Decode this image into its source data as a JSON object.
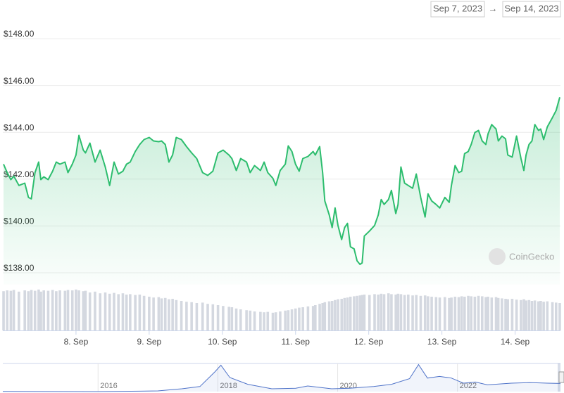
{
  "range": {
    "from": "Sep 7, 2023",
    "separator": "→",
    "to": "Sep 14, 2023"
  },
  "watermark": "CoinGecko",
  "chart_data": {
    "type": "line",
    "color": "#2dbd6e",
    "grid": true,
    "xlim": [
      7.0,
      14.62
    ],
    "ylim": [
      137.5,
      148.5
    ],
    "xticks": [
      {
        "value": 8,
        "label": "8. Sep"
      },
      {
        "value": 9,
        "label": "9. Sep"
      },
      {
        "value": 10,
        "label": "10. Sep"
      },
      {
        "value": 11,
        "label": "11. Sep"
      },
      {
        "value": 12,
        "label": "12. Sep"
      },
      {
        "value": 13,
        "label": "13. Sep"
      },
      {
        "value": 14,
        "label": "14. Sep"
      }
    ],
    "yticks": [
      {
        "value": 138,
        "label": "$138.00"
      },
      {
        "value": 140,
        "label": "$140.00"
      },
      {
        "value": 142,
        "label": "$142.00"
      },
      {
        "value": 144,
        "label": "$144.00"
      },
      {
        "value": 146,
        "label": "$146.00"
      },
      {
        "value": 148,
        "label": "$148.00"
      }
    ],
    "x": [
      7.01,
      7.06,
      7.11,
      7.15,
      7.22,
      7.3,
      7.35,
      7.39,
      7.44,
      7.49,
      7.52,
      7.56,
      7.62,
      7.68,
      7.73,
      7.78,
      7.85,
      7.89,
      7.95,
      8.0,
      8.04,
      8.1,
      8.13,
      8.19,
      8.26,
      8.33,
      8.4,
      8.46,
      8.52,
      8.58,
      8.64,
      8.69,
      8.74,
      8.81,
      8.87,
      8.93,
      9.0,
      9.06,
      9.13,
      9.17,
      9.22,
      9.27,
      9.32,
      9.37,
      9.44,
      9.51,
      9.58,
      9.65,
      9.73,
      9.8,
      9.87,
      9.94,
      10.01,
      10.09,
      10.13,
      10.19,
      10.25,
      10.33,
      10.38,
      10.44,
      10.52,
      10.57,
      10.62,
      10.69,
      10.73,
      10.79,
      10.86,
      10.9,
      10.95,
      11.0,
      11.05,
      11.1,
      11.17,
      11.24,
      11.27,
      11.33,
      11.37,
      11.4,
      11.46,
      11.5,
      11.54,
      11.58,
      11.63,
      11.67,
      11.71,
      11.75,
      11.8,
      11.84,
      11.88,
      11.91,
      11.94,
      12.01,
      12.08,
      12.13,
      12.17,
      12.21,
      12.27,
      12.31,
      12.37,
      12.4,
      12.44,
      12.49,
      12.54,
      12.6,
      12.65,
      12.71,
      12.77,
      12.81,
      12.86,
      12.92,
      12.97,
      13.04,
      13.1,
      13.13,
      13.18,
      13.23,
      13.27,
      13.31,
      13.36,
      13.4,
      13.45,
      13.5,
      13.55,
      13.6,
      13.63,
      13.68,
      13.74,
      13.77,
      13.82,
      13.87,
      13.9,
      13.96,
      14.02,
      14.08,
      14.12,
      14.15,
      14.19,
      14.23,
      14.27,
      14.32,
      14.35,
      14.39,
      14.44,
      14.51,
      14.56,
      14.61
    ],
    "values": [
      142.64,
      142.28,
      141.98,
      142.13,
      141.73,
      141.83,
      141.22,
      141.16,
      142.28,
      142.73,
      141.98,
      142.1,
      141.98,
      142.34,
      142.73,
      142.64,
      142.73,
      142.28,
      142.64,
      143.03,
      143.87,
      143.24,
      143.12,
      143.54,
      142.73,
      143.24,
      142.52,
      141.73,
      142.73,
      142.22,
      142.34,
      142.64,
      142.73,
      143.18,
      143.48,
      143.69,
      143.78,
      143.63,
      143.6,
      143.63,
      143.48,
      142.73,
      143.03,
      143.78,
      143.69,
      143.39,
      143.12,
      142.88,
      142.28,
      142.16,
      142.34,
      143.12,
      143.24,
      143.03,
      142.88,
      142.37,
      142.88,
      142.73,
      142.28,
      142.58,
      142.37,
      142.73,
      142.28,
      142.04,
      141.73,
      142.37,
      142.64,
      143.42,
      143.18,
      142.64,
      142.34,
      142.88,
      142.97,
      143.18,
      143.03,
      143.39,
      142.28,
      141.07,
      140.47,
      139.93,
      140.77,
      140.02,
      139.42,
      139.93,
      140.11,
      139.11,
      139.02,
      138.51,
      138.36,
      138.42,
      139.57,
      139.78,
      140.02,
      140.47,
      141.13,
      140.92,
      141.13,
      141.52,
      140.53,
      140.92,
      142.52,
      141.83,
      141.73,
      141.61,
      142.22,
      141.22,
      140.38,
      141.37,
      141.07,
      140.92,
      140.77,
      141.22,
      141.01,
      141.73,
      142.58,
      142.28,
      142.34,
      143.09,
      143.18,
      143.48,
      143.99,
      144.08,
      143.63,
      143.48,
      143.93,
      144.33,
      144.14,
      143.63,
      143.84,
      143.72,
      143.03,
      142.94,
      143.84,
      142.88,
      142.37,
      143.03,
      143.48,
      143.63,
      144.33,
      144.08,
      144.14,
      143.69,
      144.23,
      144.63,
      144.93,
      145.5
    ],
    "volume": {
      "color": "#d4d8e0",
      "ylim": [
        0,
        100
      ],
      "values": [
        93,
        95,
        94,
        96,
        92,
        95,
        93,
        96,
        94,
        97,
        92,
        95,
        94,
        96,
        93,
        95,
        94,
        96,
        95,
        97,
        95,
        93,
        94,
        90,
        92,
        88,
        90,
        87,
        89,
        86,
        88,
        85,
        86,
        84,
        85,
        82,
        80,
        78,
        79,
        76,
        77,
        74,
        75,
        72,
        70,
        68,
        67,
        65,
        66,
        63,
        62,
        60,
        58,
        56,
        55,
        52,
        50,
        48,
        47,
        45,
        44,
        43,
        44,
        42,
        43,
        45,
        47,
        48,
        50,
        52,
        54,
        55,
        57,
        58,
        60,
        63,
        65,
        67,
        69,
        70,
        72,
        74,
        75,
        77,
        78,
        80,
        81,
        82,
        83,
        84,
        85,
        84,
        86,
        85,
        87,
        86,
        88,
        86,
        85,
        87,
        86,
        84,
        85,
        83,
        84,
        82,
        83,
        81,
        80,
        79,
        78,
        79,
        77,
        78,
        80,
        79,
        81,
        80,
        82,
        81,
        80,
        82,
        81,
        79,
        80,
        78,
        79,
        77,
        76,
        75,
        74,
        75,
        73,
        72,
        74,
        71,
        72,
        70,
        71,
        69,
        70,
        68,
        69,
        67,
        66,
        65
      ]
    },
    "navigator": {
      "color": "#4f73c9",
      "xlim": [
        2014.41,
        2023.72
      ],
      "ylim": [
        0,
        500
      ],
      "xticks": [
        2016,
        2018,
        2020,
        2022
      ],
      "x": [
        2014.41,
        2015,
        2016,
        2016.7,
        2017,
        2017.4,
        2017.7,
        2017.95,
        2018.05,
        2018.2,
        2018.5,
        2018.9,
        2019.3,
        2019.5,
        2019.9,
        2020.2,
        2020.6,
        2020.9,
        2021.2,
        2021.35,
        2021.5,
        2021.7,
        2021.9,
        2022.1,
        2022.3,
        2022.5,
        2022.9,
        2023.2,
        2023.5,
        2023.72
      ],
      "values": [
        2,
        1,
        0.5,
        8,
        13,
        50,
        90,
        350,
        470,
        250,
        130,
        50,
        60,
        100,
        50,
        60,
        90,
        130,
        230,
        480,
        240,
        270,
        240,
        150,
        170,
        120,
        150,
        160,
        150,
        145
      ]
    }
  }
}
